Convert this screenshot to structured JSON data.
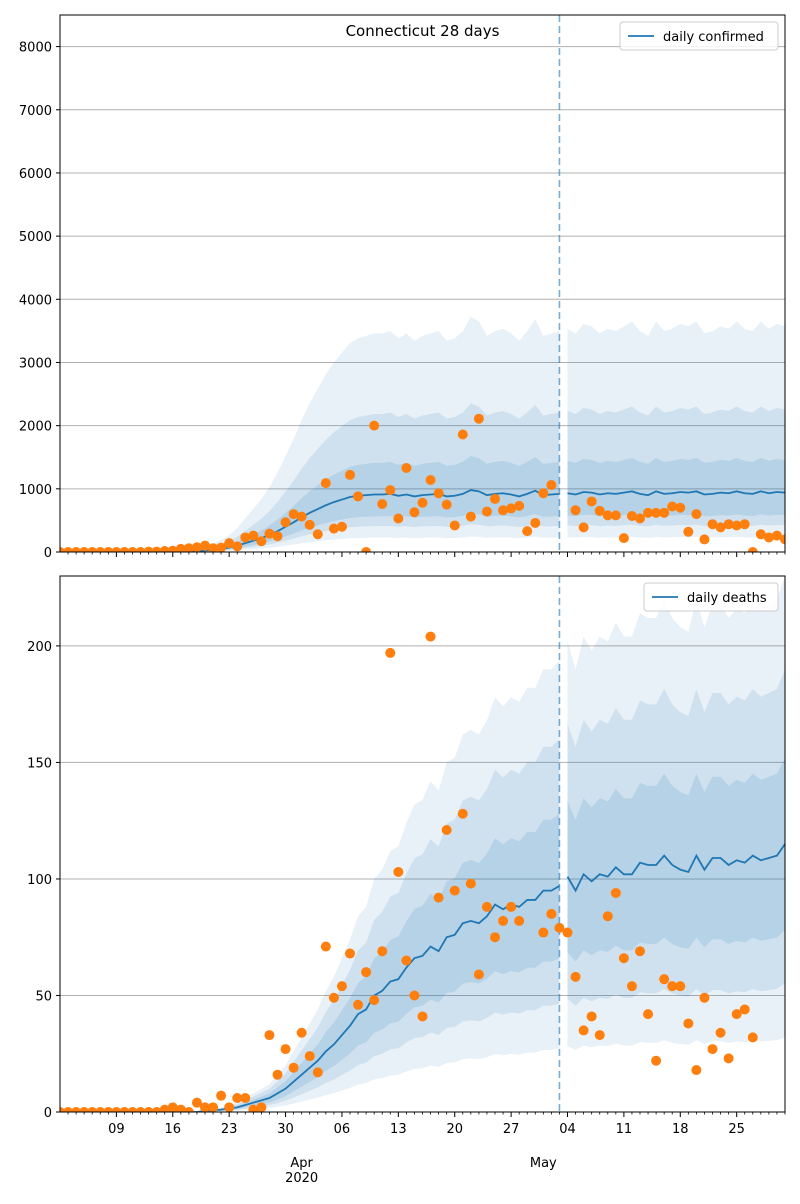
{
  "colors": {
    "model_line": "#1f77b4",
    "observed_points": "#ff7f0e",
    "band": "#1f77b4",
    "grid": "#b0b0b0",
    "vline": "#1f77b4"
  },
  "shared_x_axis": {
    "day_ticks": [
      "09",
      "16",
      "23",
      "30",
      "06",
      "13",
      "20",
      "27",
      "04",
      "11",
      "18",
      "25"
    ],
    "month_labels": [
      "Apr",
      "May"
    ],
    "year_label": "2020",
    "forecast_start": "2020-05-03"
  },
  "chart_data": [
    {
      "type": "line",
      "title": "Connecticut 28 days",
      "legend": "daily confirmed",
      "legend_position": "top-right",
      "grid": "horizontal",
      "xlim": [
        "2020-03-02",
        "2020-05-31"
      ],
      "ylim": [
        0,
        8500
      ],
      "yticks": [
        0,
        1000,
        2000,
        3000,
        4000,
        5000,
        6000,
        7000,
        8000
      ],
      "x_start": "2020-03-02",
      "model": {
        "median": [
          0,
          0,
          0,
          0,
          0,
          0,
          0,
          0,
          0,
          0,
          0,
          0,
          0,
          2,
          5,
          8,
          12,
          17,
          25,
          35,
          50,
          70,
          100,
          140,
          180,
          220,
          270,
          330,
          400,
          470,
          550,
          620,
          680,
          740,
          790,
          830,
          870,
          890,
          900,
          910,
          910,
          920,
          890,
          910,
          880,
          900,
          910,
          920,
          880,
          890,
          920,
          980,
          960,
          900,
          920,
          930,
          910,
          880,
          920,
          970,
          900,
          910,
          920,
          930,
          910,
          950,
          940,
          910,
          930,
          920,
          940,
          960,
          920,
          900,
          960,
          920,
          930,
          950,
          940,
          960,
          910,
          920,
          940,
          930,
          960,
          930,
          920,
          960,
          930,
          950,
          940
        ]
      },
      "observed": {
        "x": [
          "2020-03-02",
          "2020-03-03",
          "2020-03-04",
          "2020-03-05",
          "2020-03-06",
          "2020-03-07",
          "2020-03-08",
          "2020-03-09",
          "2020-03-10",
          "2020-03-11",
          "2020-03-12",
          "2020-03-13",
          "2020-03-14",
          "2020-03-15",
          "2020-03-16",
          "2020-03-17",
          "2020-03-18",
          "2020-03-19",
          "2020-03-20",
          "2020-03-21",
          "2020-03-22",
          "2020-03-23",
          "2020-03-24",
          "2020-03-25",
          "2020-03-26",
          "2020-03-27",
          "2020-03-28",
          "2020-03-29",
          "2020-03-30",
          "2020-03-31",
          "2020-04-01",
          "2020-04-02",
          "2020-04-03",
          "2020-04-04",
          "2020-04-05",
          "2020-04-06",
          "2020-04-07",
          "2020-04-08",
          "2020-04-09",
          "2020-04-10",
          "2020-04-11",
          "2020-04-12",
          "2020-04-13",
          "2020-04-14",
          "2020-04-15",
          "2020-04-16",
          "2020-04-17",
          "2020-04-18",
          "2020-04-19",
          "2020-04-20",
          "2020-04-21",
          "2020-04-22",
          "2020-04-23",
          "2020-04-24",
          "2020-04-25",
          "2020-04-26",
          "2020-04-27",
          "2020-04-28",
          "2020-04-29",
          "2020-04-30",
          "2020-05-01",
          "2020-05-02",
          "2020-05-03",
          "2020-05-04",
          "2020-05-05",
          "2020-05-06",
          "2020-05-07",
          "2020-05-08",
          "2020-05-09",
          "2020-05-10",
          "2020-05-11",
          "2020-05-12",
          "2020-05-13",
          "2020-05-14",
          "2020-05-15",
          "2020-05-16",
          "2020-05-17",
          "2020-05-18",
          "2020-05-19",
          "2020-05-20",
          "2020-05-21",
          "2020-05-22",
          "2020-05-23",
          "2020-05-24",
          "2020-05-25",
          "2020-05-26",
          "2020-05-27",
          "2020-05-28",
          "2020-05-29",
          "2020-05-30",
          "2020-05-31"
        ],
        "values": [
          0,
          0,
          0,
          0,
          0,
          0,
          0,
          0,
          0,
          0,
          0,
          5,
          5,
          15,
          20,
          50,
          60,
          75,
          100,
          60,
          70,
          140,
          90,
          230,
          260,
          170,
          290,
          250,
          470,
          600,
          560,
          430,
          280,
          1090,
          370,
          400,
          1220,
          880,
          0,
          2000,
          760,
          980,
          530,
          1330,
          630,
          780,
          1140,
          930,
          750,
          420,
          1860,
          560,
          2110,
          640,
          840,
          660,
          690,
          730,
          330,
          460,
          930,
          1060,
          null,
          null,
          660,
          390,
          800,
          650,
          580,
          580,
          220,
          570,
          530,
          620,
          620,
          620,
          720,
          700,
          320,
          600,
          200,
          440,
          390,
          440,
          420,
          440,
          0,
          280,
          230,
          260,
          200
        ]
      }
    },
    {
      "type": "line",
      "legend": "daily deaths",
      "legend_position": "top-right",
      "grid": "horizontal",
      "xlim": [
        "2020-03-02",
        "2020-05-31"
      ],
      "ylim": [
        0,
        230
      ],
      "yticks": [
        0,
        50,
        100,
        150,
        200
      ],
      "x_start": "2020-03-02",
      "model": {
        "median": [
          0,
          0,
          0,
          0,
          0,
          0,
          0,
          0,
          0,
          0,
          0,
          0,
          0,
          0,
          0,
          0,
          0,
          0,
          0.5,
          0.8,
          1,
          1.5,
          2,
          3,
          4,
          5,
          6,
          8,
          10,
          13,
          16,
          19,
          22,
          26,
          29,
          33,
          37,
          42,
          44,
          50,
          52,
          56,
          57,
          62,
          66,
          67,
          71,
          69,
          75,
          76,
          81,
          82,
          81,
          84,
          89,
          87,
          89,
          88,
          91,
          91,
          95,
          95,
          97,
          101,
          95,
          102,
          99,
          102,
          101,
          105,
          102,
          102,
          107,
          106,
          106,
          110,
          106,
          104,
          103,
          110,
          104,
          109,
          109,
          106,
          108,
          107,
          110,
          108,
          109,
          110,
          115
        ]
      },
      "observed": {
        "x": [
          "2020-03-02",
          "2020-03-03",
          "2020-03-04",
          "2020-03-05",
          "2020-03-06",
          "2020-03-07",
          "2020-03-08",
          "2020-03-09",
          "2020-03-10",
          "2020-03-11",
          "2020-03-12",
          "2020-03-13",
          "2020-03-14",
          "2020-03-15",
          "2020-03-16",
          "2020-03-17",
          "2020-03-18",
          "2020-03-19",
          "2020-03-20",
          "2020-03-21",
          "2020-03-22",
          "2020-03-23",
          "2020-03-24",
          "2020-03-25",
          "2020-03-26",
          "2020-03-27",
          "2020-03-28",
          "2020-03-29",
          "2020-03-30",
          "2020-03-31",
          "2020-04-01",
          "2020-04-02",
          "2020-04-03",
          "2020-04-04",
          "2020-04-05",
          "2020-04-06",
          "2020-04-07",
          "2020-04-08",
          "2020-04-09",
          "2020-04-10",
          "2020-04-11",
          "2020-04-12",
          "2020-04-13",
          "2020-04-14",
          "2020-04-15",
          "2020-04-16",
          "2020-04-17",
          "2020-04-18",
          "2020-04-19",
          "2020-04-20",
          "2020-04-21",
          "2020-04-22",
          "2020-04-23",
          "2020-04-24",
          "2020-04-25",
          "2020-04-26",
          "2020-04-27",
          "2020-04-28",
          "2020-04-29",
          "2020-04-30",
          "2020-05-01",
          "2020-05-02",
          "2020-05-03",
          "2020-05-04",
          "2020-05-05",
          "2020-05-06",
          "2020-05-07",
          "2020-05-08",
          "2020-05-09",
          "2020-05-10",
          "2020-05-11",
          "2020-05-12",
          "2020-05-13",
          "2020-05-14",
          "2020-05-15",
          "2020-05-16",
          "2020-05-17",
          "2020-05-18",
          "2020-05-19",
          "2020-05-20",
          "2020-05-21",
          "2020-05-22",
          "2020-05-23",
          "2020-05-24",
          "2020-05-25",
          "2020-05-26",
          "2020-05-27",
          "2020-05-28",
          "2020-05-29",
          "2020-05-30",
          "2020-05-31"
        ],
        "values": [
          0,
          0,
          0,
          0,
          0,
          0,
          0,
          0,
          0,
          0,
          0,
          0,
          0,
          1,
          2,
          1,
          0,
          4,
          2,
          2,
          7,
          2,
          6,
          6,
          1,
          2,
          33,
          16,
          27,
          19,
          34,
          24,
          17,
          71,
          49,
          54,
          68,
          46,
          60,
          48,
          69,
          197,
          103,
          65,
          50,
          41,
          204,
          92,
          121,
          95,
          128,
          98,
          59,
          88,
          75,
          82,
          88,
          82,
          null,
          null,
          77,
          85,
          79,
          77,
          58,
          35,
          41,
          33,
          84,
          94,
          66,
          54,
          69,
          42,
          22,
          57,
          54,
          54,
          38,
          18,
          49,
          27,
          34,
          23,
          42,
          44,
          32,
          null,
          null,
          null,
          null
        ]
      }
    }
  ]
}
